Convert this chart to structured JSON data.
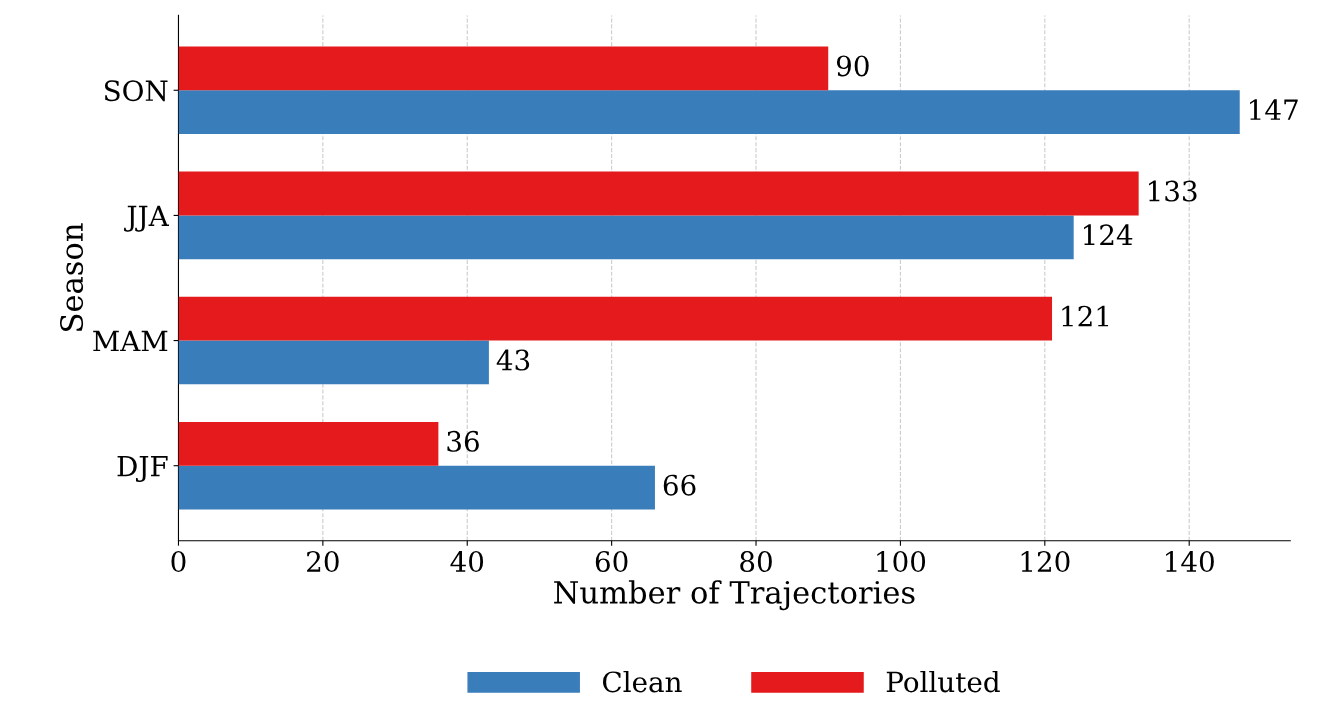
{
  "chart_data": {
    "type": "bar",
    "orientation": "horizontal",
    "xlabel": "Number of Trajectories",
    "ylabel": "Season",
    "categories": [
      "SON",
      "JJA",
      "MAM",
      "DJF"
    ],
    "series": [
      {
        "name": "Clean",
        "color": "#3a7dbb",
        "values": [
          147,
          124,
          43,
          66
        ]
      },
      {
        "name": "Polluted",
        "color": "#e41a1c",
        "values": [
          90,
          133,
          121,
          36
        ]
      }
    ],
    "xlim": [
      0,
      154
    ],
    "xticks": [
      0,
      20,
      40,
      60,
      80,
      100,
      120,
      140
    ],
    "grid": "x",
    "legend": "bottom",
    "data_labels": true
  }
}
